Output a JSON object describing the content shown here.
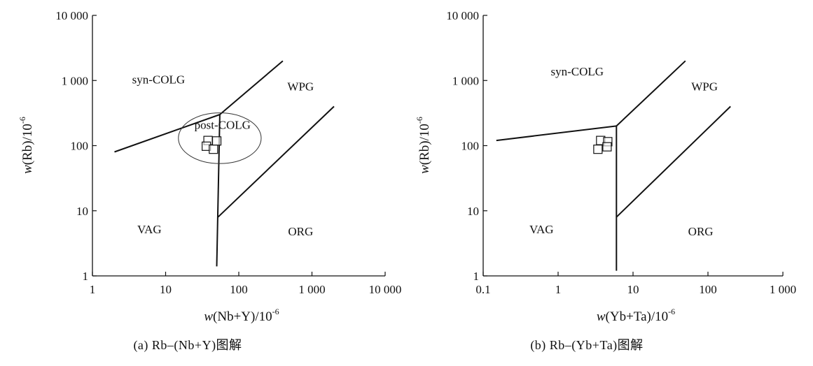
{
  "chart_data": [
    {
      "type": "scatter",
      "title": "",
      "caption": "(a) Rb–(Nb+Y)图解",
      "xlabel": {
        "w": "w",
        "body": "(Nb+Y)/10",
        "sup": "-6"
      },
      "ylabel": {
        "w": "w",
        "body": "(Rb)/10",
        "sup": "-6"
      },
      "xscale": "log",
      "yscale": "log",
      "xlim": [
        1,
        10000
      ],
      "ylim": [
        1,
        10000
      ],
      "grid": false,
      "x_ticks": [
        {
          "v": 1,
          "label": "1"
        },
        {
          "v": 10,
          "label": "10"
        },
        {
          "v": 100,
          "label": "100"
        },
        {
          "v": 1000,
          "label": "1 000"
        },
        {
          "v": 10000,
          "label": "10 000"
        }
      ],
      "y_ticks": [
        {
          "v": 1,
          "label": "1"
        },
        {
          "v": 10,
          "label": "10"
        },
        {
          "v": 100,
          "label": "100"
        },
        {
          "v": 1000,
          "label": "1 000"
        },
        {
          "v": 10000,
          "label": "10 000"
        }
      ],
      "boundaries": [
        {
          "points": [
            [
              2,
              80
            ],
            [
              55,
              300
            ]
          ]
        },
        {
          "points": [
            [
              55,
              300
            ],
            [
              400,
              2000
            ]
          ]
        },
        {
          "points": [
            [
              55,
              300
            ],
            [
              50,
              1.4
            ]
          ]
        },
        {
          "points": [
            [
              52,
              8
            ],
            [
              2000,
              400
            ]
          ]
        }
      ],
      "regions": [
        {
          "label": "syn-COLG",
          "x": 8,
          "y": 900
        },
        {
          "label": "WPG",
          "x": 700,
          "y": 700
        },
        {
          "label": "post-COLG",
          "x": 60,
          "y": 180
        },
        {
          "label": "VAG",
          "x": 6,
          "y": 4.5
        },
        {
          "label": "ORG",
          "x": 700,
          "y": 4.2
        }
      ],
      "ellipse": {
        "cx": 55,
        "cy": 130,
        "x_span": [
          17,
          230
        ],
        "y_span": [
          55,
          330
        ]
      },
      "points": [
        {
          "x": 38,
          "y": 120
        },
        {
          "x": 50,
          "y": 118
        },
        {
          "x": 36,
          "y": 98
        },
        {
          "x": 45,
          "y": 88
        }
      ]
    },
    {
      "type": "scatter",
      "title": "",
      "caption": "(b) Rb–(Yb+Ta)图解",
      "xlabel": {
        "w": "w",
        "body": "(Yb+Ta)/10",
        "sup": "-6"
      },
      "ylabel": {
        "w": "w",
        "body": "(Rb)/10",
        "sup": "-6"
      },
      "xscale": "log",
      "yscale": "log",
      "xlim": [
        0.1,
        1000
      ],
      "ylim": [
        1,
        10000
      ],
      "grid": false,
      "x_ticks": [
        {
          "v": 0.1,
          "label": "0.1"
        },
        {
          "v": 1,
          "label": "1"
        },
        {
          "v": 10,
          "label": "10"
        },
        {
          "v": 100,
          "label": "100"
        },
        {
          "v": 1000,
          "label": "1 000"
        }
      ],
      "y_ticks": [
        {
          "v": 1,
          "label": "1"
        },
        {
          "v": 10,
          "label": "10"
        },
        {
          "v": 100,
          "label": "100"
        },
        {
          "v": 1000,
          "label": "1 000"
        },
        {
          "v": 10000,
          "label": "10 000"
        }
      ],
      "boundaries": [
        {
          "points": [
            [
              0.15,
              120
            ],
            [
              6,
              200
            ]
          ]
        },
        {
          "points": [
            [
              6,
              200
            ],
            [
              50,
              2000
            ]
          ]
        },
        {
          "points": [
            [
              6,
              200
            ],
            [
              6,
              1.2
            ]
          ]
        },
        {
          "points": [
            [
              6,
              8
            ],
            [
              200,
              400
            ]
          ]
        }
      ],
      "regions": [
        {
          "label": "syn-COLG",
          "x": 1.8,
          "y": 1200
        },
        {
          "label": "WPG",
          "x": 90,
          "y": 700
        },
        {
          "label": "VAG",
          "x": 0.6,
          "y": 4.5
        },
        {
          "label": "ORG",
          "x": 80,
          "y": 4.2
        }
      ],
      "points": [
        {
          "x": 3.7,
          "y": 120
        },
        {
          "x": 4.6,
          "y": 115
        },
        {
          "x": 3.4,
          "y": 88
        },
        {
          "x": 4.5,
          "y": 96
        }
      ]
    }
  ]
}
